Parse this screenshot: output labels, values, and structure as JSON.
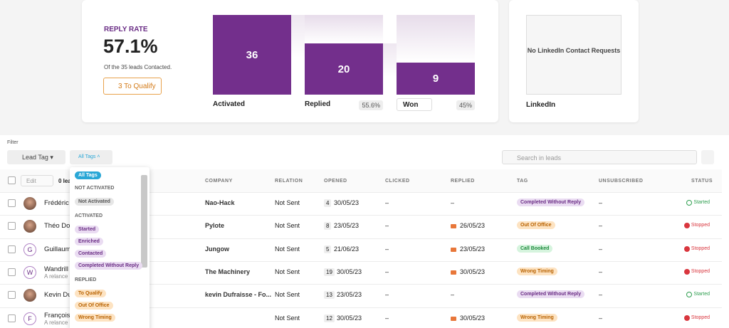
{
  "stats": {
    "label": "REPLY RATE",
    "value": "57.1%",
    "subtitle": "Of the 35 leads Contacted.",
    "button": "3 To Qualify"
  },
  "funnel": [
    {
      "label": "Activated",
      "value": "36",
      "percent": null
    },
    {
      "label": "Replied",
      "value": "20",
      "percent": "55.6%"
    },
    {
      "label": "Won",
      "value": "9",
      "percent": "45%"
    }
  ],
  "linkedin": {
    "message": "No LinkedIn Contact Requests",
    "title": "LinkedIn"
  },
  "filter": {
    "label": "Filter",
    "lead_tag": "Lead Tag",
    "all_tags": "All Tags",
    "search": "Search in leads"
  },
  "table": {
    "headers": [
      "Edit",
      "0 lea",
      "COMPANY",
      "RELATION",
      "OPENED",
      "CLICKED",
      "REPLIED",
      "TAG",
      "UNSUBSCRIBED",
      "STATUS"
    ],
    "rows": [
      {
        "name": "Frédéric",
        "note": null,
        "avatar": null,
        "company": "Nao-Hack",
        "relation": "Not Sent",
        "opened_count": "4",
        "opened": "30/05/23",
        "clicked": "–",
        "replied": "–",
        "replied_mail": false,
        "tag": "Completed Without Reply",
        "tag_color": "#6a2d85",
        "tag_bg": "#eadcf2",
        "unsubscribed": "–",
        "status": "Started",
        "status_color": "#2e9e4f"
      },
      {
        "name": "Théo Do",
        "note": null,
        "avatar": null,
        "company": "Pylote",
        "relation": "Not Sent",
        "opened_count": "8",
        "opened": "23/05/23",
        "clicked": "–",
        "replied": "26/05/23",
        "replied_mail": true,
        "tag": "Out Of Office",
        "tag_color": "#b86200",
        "tag_bg": "#fde3c2",
        "unsubscribed": "–",
        "status": "Stopped",
        "status_color": "#d9363e"
      },
      {
        "name": "Guillaum",
        "note": null,
        "avatar": "G",
        "company": "Jungow",
        "relation": "Not Sent",
        "opened_count": "5",
        "opened": "21/06/23",
        "clicked": "–",
        "replied": "23/05/23",
        "replied_mail": true,
        "tag": "Call Booked",
        "tag_color": "#1d8a3c",
        "tag_bg": "#d6f4de",
        "unsubscribed": "–",
        "status": "Stopped",
        "status_color": "#d9363e"
      },
      {
        "name": "Wandrill",
        "note": "A relance",
        "avatar": "W",
        "company": "The Machinery",
        "relation": "Not Sent",
        "opened_count": "19",
        "opened": "30/05/23",
        "clicked": "–",
        "replied": "30/05/23",
        "replied_mail": true,
        "tag": "Wrong Timing",
        "tag_color": "#b86200",
        "tag_bg": "#fde3c2",
        "unsubscribed": "–",
        "status": "Stopped",
        "status_color": "#d9363e"
      },
      {
        "name": "Kevin Du",
        "note": null,
        "avatar": null,
        "company": "kevin Dufraisse - Fo...",
        "relation": "Not Sent",
        "opened_count": "13",
        "opened": "23/05/23",
        "clicked": "–",
        "replied": "–",
        "replied_mail": false,
        "tag": "Completed Without Reply",
        "tag_color": "#6a2d85",
        "tag_bg": "#eadcf2",
        "unsubscribed": "–",
        "status": "Started",
        "status_color": "#2e9e4f"
      },
      {
        "name": "François",
        "note": "A relance",
        "avatar": "F",
        "company": null,
        "relation": "Not Sent",
        "opened_count": "12",
        "opened": "30/05/23",
        "clicked": "–",
        "replied": "30/05/23",
        "replied_mail": true,
        "tag": "Wrong Timing",
        "tag_color": "#b86200",
        "tag_bg": "#fde3c2",
        "unsubscribed": "–",
        "status": "Stopped",
        "status_color": "#d9363e"
      }
    ]
  },
  "dropdown": {
    "selected": "All Tags",
    "groups": [
      {
        "title": "NOT ACTIVATED",
        "items": [
          "Not Activated"
        ],
        "color": "#555555",
        "background": "#e6e6e6"
      },
      {
        "title": "ACTIVATED",
        "items": [
          "Started",
          "Enriched",
          "Contacted",
          "Completed Without Reply"
        ],
        "color": "#6a2d85",
        "background": "#eadcf2"
      },
      {
        "title": "REPLIED",
        "items": [
          "To Qualify",
          "Out Of Office",
          "Wrong Timing"
        ],
        "color": "#b86200",
        "background": "#fde3c2"
      }
    ]
  }
}
